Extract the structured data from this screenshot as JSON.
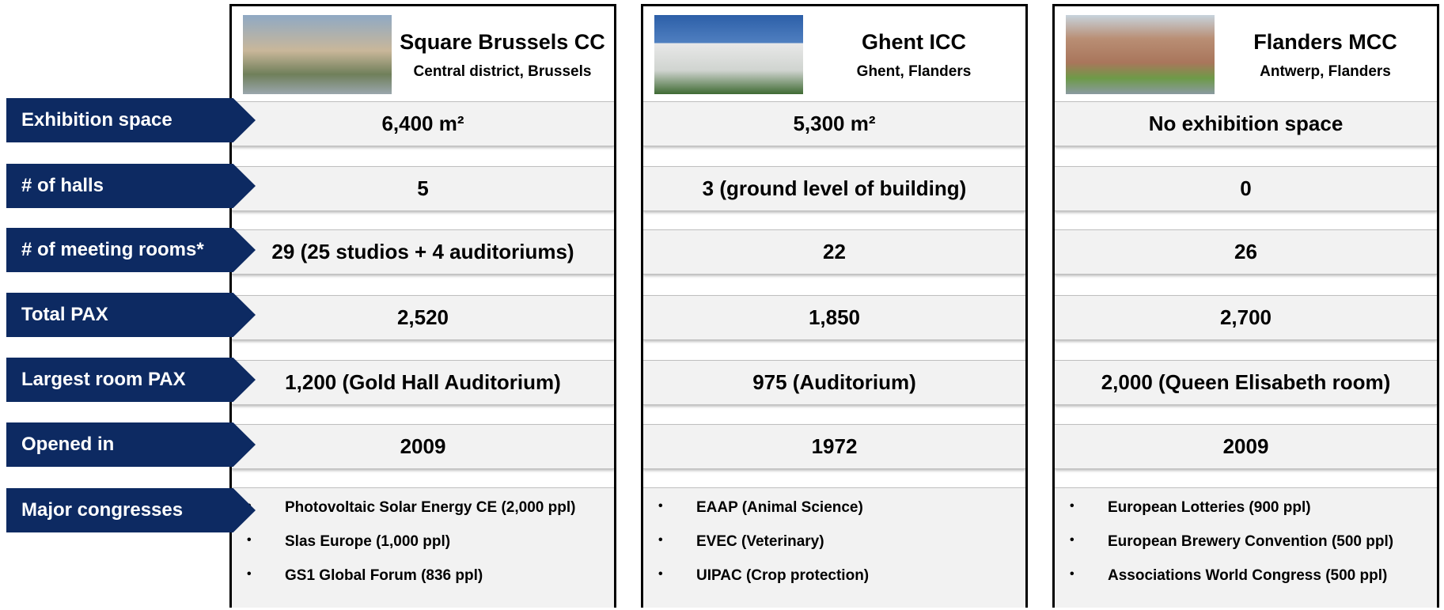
{
  "row_labels": [
    "Exhibition space",
    "# of halls",
    "# of meeting rooms*",
    "Total PAX",
    "Largest room PAX",
    "Opened in",
    "Major congresses"
  ],
  "venues": [
    {
      "name": "Square Brussels CC",
      "location": "Central district, Brussels",
      "cells": [
        "6,400 m²",
        "5",
        "29 (25 studios + 4 auditoriums)",
        "2,520",
        "1,200 (Gold Hall Auditorium)",
        "2009"
      ],
      "congresses": [
        "Photovoltaic Solar Energy CE (2,000 ppl)",
        "Slas Europe (1,000 ppl)",
        "GS1 Global Forum (836 ppl)"
      ]
    },
    {
      "name": "Ghent ICC",
      "location": "Ghent, Flanders",
      "cells": [
        "5,300 m²",
        "3 (ground level of building)",
        "22",
        "1,850",
        "975 (Auditorium)",
        "1972"
      ],
      "congresses": [
        "EAAP (Animal Science)",
        "EVEC (Veterinary)",
        "UIPAC (Crop protection)"
      ]
    },
    {
      "name": "Flanders MCC",
      "location": "Antwerp, Flanders",
      "cells": [
        "No exhibition space",
        "0",
        "26",
        "2,700",
        "2,000 (Queen Elisabeth room)",
        "2009"
      ],
      "congresses": [
        "European Lotteries (900 ppl)",
        "European Brewery Convention (500 ppl)",
        "Associations World Congress (500 ppl)"
      ]
    }
  ]
}
